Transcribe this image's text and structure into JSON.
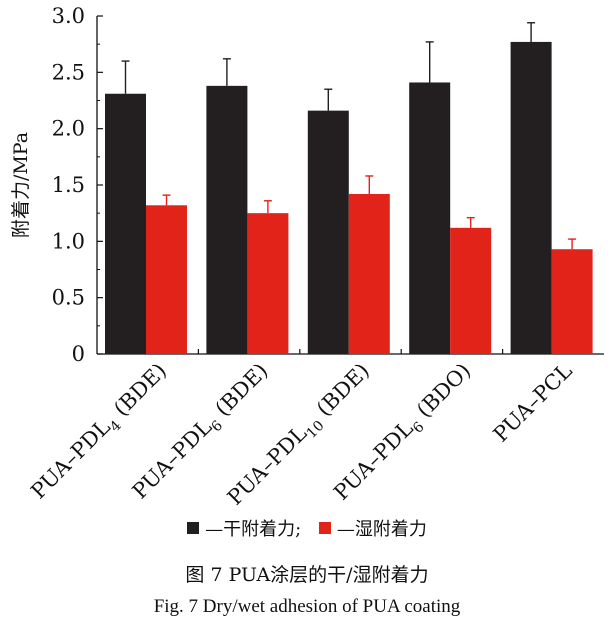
{
  "chart_data": {
    "type": "bar",
    "ylabel": "附着力/MPa",
    "ylim": [
      0,
      3.0
    ],
    "yticks": [
      "0",
      "0.5",
      "1.0",
      "1.5",
      "2.0",
      "2.5",
      "3.0"
    ],
    "categories": [
      {
        "base": "PUA–PDL",
        "sub": "4",
        "tail": " (BDE)"
      },
      {
        "base": "PUA–PDL",
        "sub": "6",
        "tail": " (BDE)"
      },
      {
        "base": "PUA–PDL",
        "sub": "10",
        "tail": " (BDE)"
      },
      {
        "base": "PUA–PDL",
        "sub": "6",
        "tail": " (BDO)"
      },
      {
        "base": "PUA–PCL",
        "sub": "",
        "tail": ""
      }
    ],
    "series": [
      {
        "name": "—干附着力;",
        "color": "#231f20",
        "values": [
          2.31,
          2.38,
          2.16,
          2.41,
          2.77
        ],
        "errors": [
          0.29,
          0.24,
          0.19,
          0.36,
          0.17
        ]
      },
      {
        "name": "—湿附着力",
        "color": "#e2231a",
        "values": [
          1.32,
          1.25,
          1.42,
          1.12,
          0.93
        ],
        "errors": [
          0.09,
          0.11,
          0.16,
          0.09,
          0.09
        ]
      }
    ],
    "grid": false,
    "legend_position": "bottom"
  },
  "caption": {
    "cn": "图 7   PUA涂层的干/湿附着力",
    "en": "Fig. 7    Dry/wet adhesion of PUA coating"
  }
}
